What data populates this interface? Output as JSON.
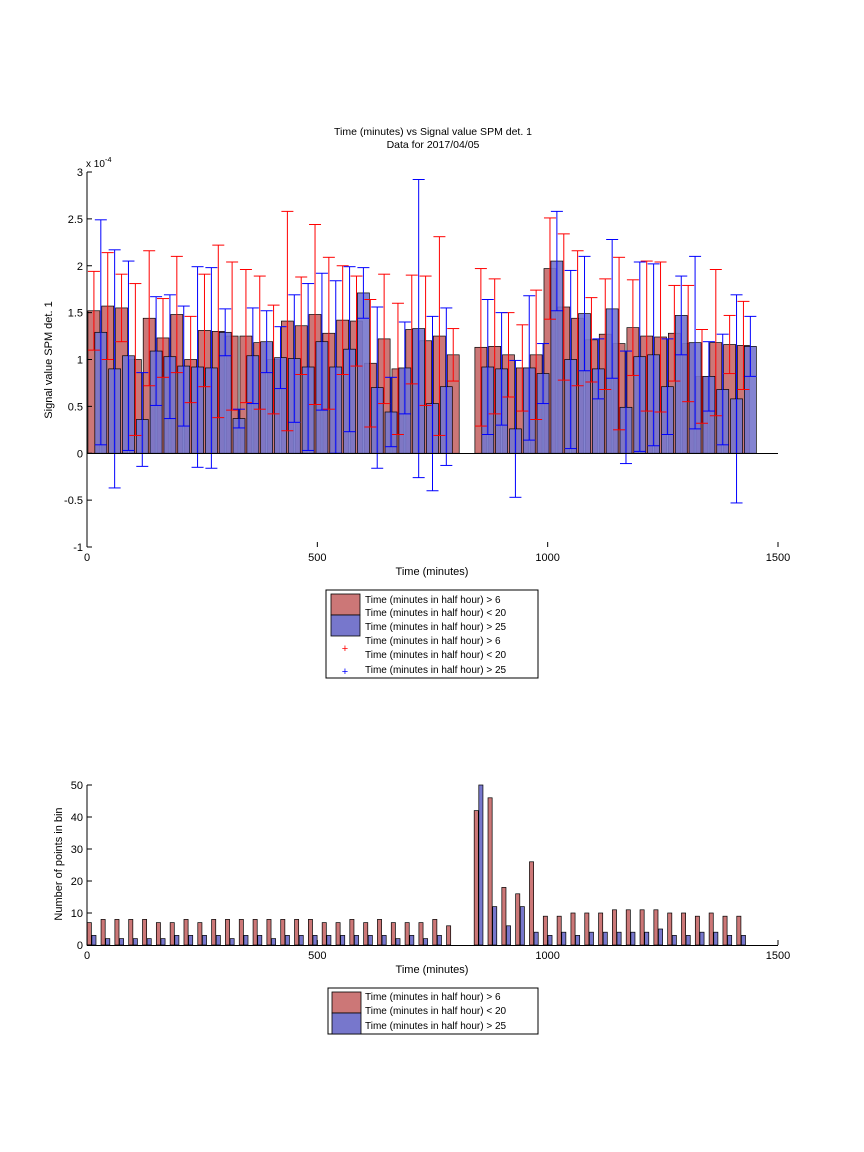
{
  "chart_data": [
    {
      "type": "bar",
      "title": "Time (minutes) vs Signal value SPM det. 1",
      "subtitle": "Data for 2017/04/05",
      "xlabel": "Time (minutes)",
      "ylabel": "Signal value SPM det. 1",
      "scale_label": "x 10",
      "scale_exponent": "-4",
      "xlim": [
        0,
        1500
      ],
      "ylim": [
        -1,
        3
      ],
      "xticks": [
        "0",
        "500",
        "1000",
        "1500"
      ],
      "yticks": [
        "-1",
        "-0.5",
        "0",
        "0.5",
        "1",
        "1.5",
        "2",
        "2.5",
        "3"
      ],
      "grid": false,
      "legend_position": "below",
      "legend": [
        {
          "label_lines": [
            "Time (minutes in half hour) > 6",
            "Time (minutes in half hour) < 20"
          ],
          "kind": "bar",
          "color": "#cc7777"
        },
        {
          "label_lines": [
            "Time (minutes in half hour) > 25"
          ],
          "kind": "bar",
          "color": "#7777cc"
        },
        {
          "label_lines": [
            "Time (minutes in half hour) > 6",
            "Time (minutes in half hour) < 20"
          ],
          "kind": "errorbar",
          "color": "#ff0000"
        },
        {
          "label_lines": [
            "Time (minutes in half hour) > 25"
          ],
          "kind": "errorbar",
          "color": "#0000ff"
        }
      ],
      "series": [
        {
          "color": "#cc7777",
          "error_color": "#ff0000",
          "x": [
            15,
            45,
            75,
            105,
            135,
            165,
            195,
            225,
            255,
            285,
            315,
            345,
            375,
            405,
            435,
            465,
            495,
            525,
            555,
            585,
            615,
            645,
            675,
            705,
            735,
            765,
            795,
            855,
            885,
            915,
            945,
            975,
            1005,
            1035,
            1065,
            1095,
            1125,
            1155,
            1185,
            1215,
            1245,
            1275,
            1305,
            1335,
            1365,
            1395,
            1425
          ],
          "values": [
            1.52,
            1.57,
            1.55,
            1.0,
            1.44,
            1.23,
            1.48,
            1.0,
            1.31,
            1.3,
            1.25,
            1.25,
            1.18,
            1.0,
            1.41,
            1.36,
            1.48,
            1.28,
            1.42,
            1.41,
            0.96,
            1.22,
            0.9,
            1.32,
            1.2,
            1.25,
            1.05,
            1.13,
            1.14,
            1.05,
            0.91,
            1.05,
            1.97,
            1.56,
            1.44,
            1.21,
            1.27,
            1.17,
            1.34,
            1.25,
            1.24,
            1.28,
            1.17,
            0.82,
            1.18,
            1.16,
            1.15
          ],
          "errors": [
            0.42,
            0.57,
            0.36,
            0.81,
            0.72,
            0.42,
            0.62,
            0.46,
            0.6,
            0.92,
            0.79,
            0.71,
            0.71,
            0.58,
            1.17,
            0.52,
            0.96,
            0.81,
            0.58,
            0.48,
            0.68,
            0.69,
            0.7,
            0.58,
            0.69,
            1.06,
            0.28,
            0.84,
            0.72,
            0.45,
            0.46,
            0.69,
            0.54,
            0.78,
            0.72,
            0.45,
            0.59,
            0.92,
            0.51,
            0.8,
            0.8,
            0.51,
            0.62,
            0.5,
            0.78,
            0.31,
            0.47
          ]
        },
        {
          "color": "#7777cc",
          "error_color": "#0000ff",
          "x": [
            30,
            60,
            90,
            120,
            150,
            180,
            210,
            240,
            270,
            300,
            330,
            360,
            390,
            420,
            450,
            480,
            510,
            540,
            570,
            600,
            630,
            660,
            690,
            720,
            750,
            780,
            810,
            840,
            870,
            900,
            930,
            960,
            990,
            1020,
            1050,
            1080,
            1110,
            1140,
            1170,
            1200,
            1230,
            1260,
            1290,
            1320,
            1350,
            1380,
            1410,
            1440
          ],
          "values": [
            1.29,
            0.9,
            1.04,
            0.36,
            1.09,
            1.03,
            0.93,
            0.92,
            0.91,
            1.29,
            0.37,
            1.04,
            1.19,
            1.02,
            1.01,
            0.92,
            1.19,
            0.92,
            1.11,
            1.71,
            0.7,
            0.44,
            0.91,
            1.33,
            0.53,
            0.71,
            0.0,
            0.0,
            0.92,
            0.9,
            0.26,
            0.91,
            0.85,
            2.05,
            1.0,
            1.49,
            0.9,
            1.54,
            0.49,
            1.03,
            1.05,
            0.71,
            1.47,
            1.18,
            0.82,
            0.68,
            0.58,
            1.14
          ],
          "errors": [
            1.2,
            1.27,
            1.01,
            0.5,
            0.58,
            0.66,
            0.64,
            1.07,
            1.07,
            0.25,
            0.1,
            0.51,
            0.33,
            0.33,
            0.68,
            0.89,
            0.73,
            0.92,
            0.88,
            0.27,
            0.86,
            0.37,
            0.49,
            1.59,
            0.93,
            0.84,
            0.0,
            0.0,
            0.72,
            0.6,
            0.73,
            0.77,
            0.32,
            0.53,
            0.95,
            0.61,
            0.32,
            0.74,
            0.6,
            1.01,
            0.97,
            0.51,
            0.42,
            0.92,
            0.37,
            0.59,
            1.11,
            0.32
          ]
        }
      ]
    },
    {
      "type": "bar",
      "title": "",
      "xlabel": "Time (minutes)",
      "ylabel": "Number of points in bin",
      "xlim": [
        0,
        1500
      ],
      "ylim": [
        0,
        50
      ],
      "xticks": [
        "0",
        "500",
        "1000",
        "1500"
      ],
      "yticks": [
        "0",
        "10",
        "20",
        "30",
        "40",
        "50"
      ],
      "grid": false,
      "legend_position": "below",
      "legend": [
        {
          "label_lines": [
            "Time (minutes in half hour) > 6",
            "Time (minutes in half hour) < 20"
          ],
          "kind": "bar",
          "color": "#cc7777"
        },
        {
          "label_lines": [
            "Time (minutes in half hour) > 25"
          ],
          "kind": "bar",
          "color": "#7777cc"
        }
      ],
      "series": [
        {
          "color": "#cc7777",
          "x": [
            5,
            35,
            65,
            95,
            125,
            155,
            185,
            215,
            245,
            275,
            305,
            335,
            365,
            395,
            425,
            455,
            485,
            515,
            545,
            575,
            605,
            635,
            665,
            695,
            725,
            755,
            785,
            845,
            875,
            905,
            935,
            965,
            995,
            1025,
            1055,
            1085,
            1115,
            1145,
            1175,
            1205,
            1235,
            1265,
            1295,
            1325,
            1355,
            1385,
            1415
          ],
          "values": [
            7,
            8,
            8,
            8,
            8,
            7,
            7,
            8,
            7,
            8,
            8,
            8,
            8,
            8,
            8,
            8,
            8,
            7,
            7,
            8,
            7,
            8,
            7,
            7,
            7,
            8,
            6,
            42,
            46,
            18,
            16,
            26,
            9,
            9,
            10,
            10,
            10,
            11,
            11,
            11,
            11,
            10,
            10,
            9,
            10,
            9,
            9
          ]
        },
        {
          "color": "#7777cc",
          "x": [
            15,
            45,
            75,
            105,
            135,
            165,
            195,
            225,
            255,
            285,
            315,
            345,
            375,
            405,
            435,
            465,
            495,
            525,
            555,
            585,
            615,
            645,
            675,
            705,
            735,
            765,
            855,
            885,
            915,
            945,
            975,
            1005,
            1035,
            1065,
            1095,
            1125,
            1155,
            1185,
            1215,
            1245,
            1275,
            1305,
            1335,
            1365,
            1395,
            1425
          ],
          "values": [
            3,
            2,
            2,
            2,
            2,
            2,
            3,
            3,
            3,
            3,
            2,
            3,
            3,
            2,
            3,
            3,
            3,
            3,
            3,
            3,
            3,
            3,
            2,
            3,
            2,
            3,
            50,
            12,
            6,
            12,
            4,
            3,
            4,
            3,
            4,
            4,
            4,
            4,
            4,
            5,
            3,
            3,
            4,
            4,
            3,
            3
          ]
        }
      ]
    }
  ]
}
